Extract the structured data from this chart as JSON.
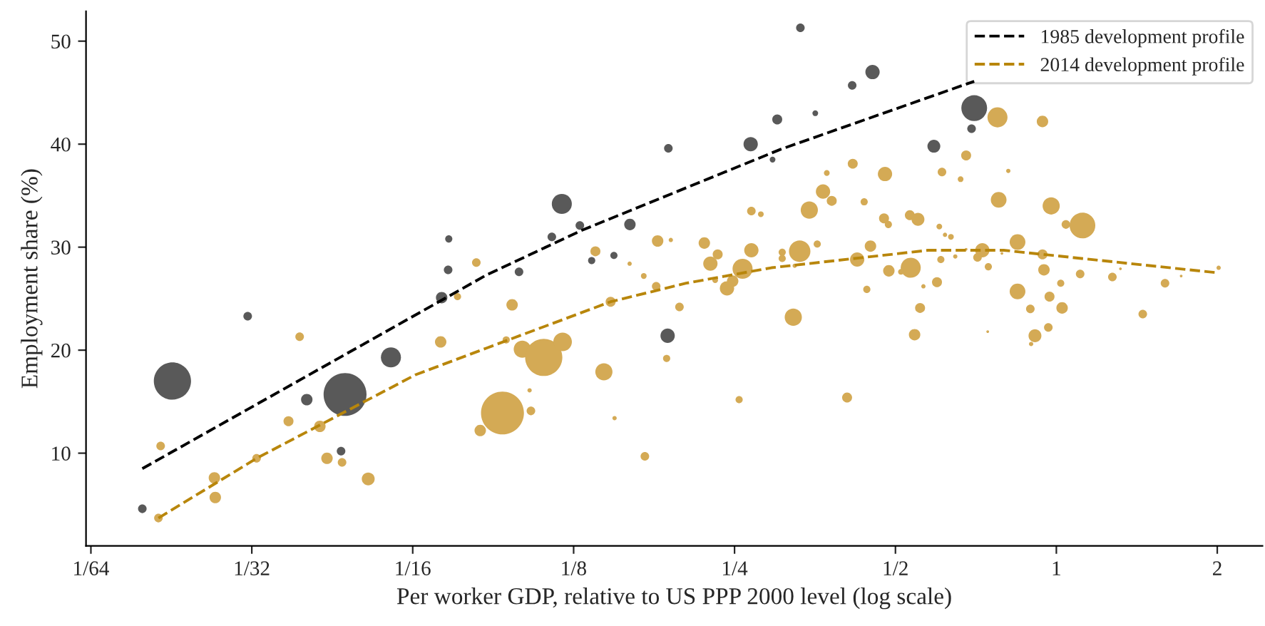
{
  "chart_data": {
    "type": "bubble",
    "xlabel": "Per worker GDP, relative to US PPP 2000 level (log scale)",
    "ylabel": "Employment share (%)",
    "log": "x",
    "grid": false,
    "legend": "top right",
    "marker": "circle",
    "xlim": [
      0.0153,
      2.43
    ],
    "ylim": [
      1.0,
      52.9
    ],
    "xticks": [
      {
        "value": 0.015625,
        "label": "1/64"
      },
      {
        "value": 0.03125,
        "label": "1/32"
      },
      {
        "value": 0.0625,
        "label": "1/16"
      },
      {
        "value": 0.125,
        "label": "1/8"
      },
      {
        "value": 0.25,
        "label": "1/4"
      },
      {
        "value": 0.5,
        "label": "1/2"
      },
      1,
      2
    ],
    "yticks": [
      10,
      20,
      30,
      40,
      50
    ],
    "series": [
      {
        "color": "#595959",
        "x": [
          0.0195,
          0.0222,
          0.0307,
          0.0396,
          0.0459,
          0.0467,
          0.0569,
          0.0708,
          0.0728,
          0.073,
          0.0988,
          0.1138,
          0.1188,
          0.1284,
          0.1351,
          0.1487,
          0.1593,
          0.1874,
          0.188,
          0.268,
          0.2945,
          0.3005,
          0.332,
          0.354,
          0.415,
          0.453,
          0.59,
          0.694,
          0.702
        ],
        "values": [
          4.6,
          17.0,
          23.3,
          15.2,
          10.2,
          15.7,
          19.3,
          25.1,
          27.8,
          30.8,
          27.6,
          31.0,
          34.2,
          32.1,
          28.7,
          29.2,
          32.2,
          21.4,
          39.6,
          40.0,
          38.5,
          42.4,
          51.3,
          43.0,
          45.7,
          47.0,
          39.8,
          41.5,
          43.5
        ],
        "sizes": [
          0.04,
          0.751,
          0.04,
          0.071,
          0.04,
          1.0,
          0.218,
          0.071,
          0.04,
          0.028,
          0.04,
          0.04,
          0.218,
          0.04,
          0.028,
          0.028,
          0.071,
          0.111,
          0.04,
          0.111,
          0.018,
          0.054,
          0.04,
          0.018,
          0.04,
          0.111,
          0.09,
          0.04,
          0.36
        ]
      },
      {
        "color": "#d4aa55",
        "x": [
          0.0822,
          0.0384,
          0.0758,
          0.0705,
          0.0211,
          0.0366,
          0.0419,
          0.0319,
          0.0266,
          0.0267,
          0.0432,
          0.0461,
          0.0516,
          0.0209,
          0.0836,
          0.0959,
          0.0935,
          0.1002,
          0.1099,
          0.1192,
          0.1034,
          0.104,
          0.092,
          0.1373,
          0.1466,
          0.1424,
          0.1491,
          0.1699,
          0.1795,
          0.19,
          0.1591,
          0.1691,
          0.1784,
          0.1972,
          0.1866,
          0.2195,
          0.2325,
          0.2253,
          0.2688,
          0.2588,
          0.248,
          0.242,
          0.23,
          0.255,
          0.2688,
          0.28,
          0.345,
          0.366,
          0.38,
          0.416,
          0.372,
          0.478,
          0.437,
          0.476,
          0.485,
          0.532,
          0.551,
          0.611,
          0.678,
          0.662,
          0.78,
          0.604,
          0.619,
          0.635,
          0.727,
          0.712,
          0.746,
          0.647,
          0.608,
          0.534,
          0.486,
          0.512,
          0.598,
          0.564,
          0.449,
          0.424,
          0.442,
          0.357,
          0.331,
          0.307,
          0.307,
          0.324,
          0.322,
          0.556,
          0.543,
          0.744,
          0.406,
          0.776,
          0.942,
          0.813,
          0.978,
          1.119,
          1.042,
          0.846,
          0.678,
          0.791,
          0.942,
          0.948,
          1.019,
          1.108,
          1.273,
          1.318,
          1.597,
          1.712,
          2.012,
          0.846,
          0.971,
          0.894,
          1.025,
          1.451,
          0.966,
          0.912,
          0.897
        ],
        "values": [
          28.5,
          21.3,
          25.2,
          20.8,
          10.7,
          13.1,
          12.6,
          9.5,
          7.6,
          5.7,
          9.5,
          9.1,
          7.5,
          3.7,
          12.2,
          24.4,
          21.0,
          20.1,
          19.3,
          20.8,
          16.1,
          14.1,
          13.9,
          29.6,
          24.7,
          17.9,
          13.4,
          9.7,
          30.6,
          30.7,
          28.4,
          27.2,
          26.2,
          24.2,
          19.2,
          30.4,
          29.3,
          28.4,
          29.7,
          27.9,
          26.7,
          26.0,
          26.8,
          15.2,
          33.5,
          33.2,
          33.6,
          35.4,
          34.5,
          38.1,
          37.2,
          37.1,
          34.4,
          32.8,
          32.2,
          33.1,
          32.7,
          37.3,
          38.9,
          36.6,
          34.6,
          32.0,
          31.2,
          31.0,
          29.7,
          29.0,
          28.1,
          29.1,
          28.8,
          28.0,
          27.7,
          27.6,
          26.6,
          26.2,
          30.1,
          28.8,
          25.9,
          30.3,
          29.6,
          29.5,
          28.9,
          28.2,
          23.2,
          24.1,
          21.5,
          21.8,
          15.4,
          42.6,
          42.2,
          37.4,
          34.0,
          32.1,
          32.2,
          30.5,
          29.8,
          29.4,
          29.3,
          27.8,
          26.5,
          27.4,
          27.1,
          27.9,
          26.5,
          27.2,
          28.0,
          25.7,
          25.2,
          24.0,
          24.1,
          23.5,
          22.2,
          21.4,
          20.6
        ],
        "sizes": [
          0.04,
          0.04,
          0.028,
          0.071,
          0.04,
          0.054,
          0.071,
          0.04,
          0.071,
          0.071,
          0.071,
          0.04,
          0.09,
          0.04,
          0.071,
          0.071,
          0.028,
          0.16,
          0.751,
          0.188,
          0.01,
          0.04,
          1.0,
          0.054,
          0.054,
          0.16,
          0.01,
          0.04,
          0.071,
          0.01,
          0.01,
          0.018,
          0.04,
          0.04,
          0.028,
          0.071,
          0.054,
          0.111,
          0.111,
          0.218,
          0.071,
          0.111,
          0.018,
          0.028,
          0.04,
          0.018,
          0.16,
          0.111,
          0.054,
          0.054,
          0.018,
          0.111,
          0.028,
          0.054,
          0.028,
          0.054,
          0.09,
          0.04,
          0.054,
          0.018,
          0.134,
          0.018,
          0.01,
          0.018,
          0.111,
          0.04,
          0.028,
          0.01,
          0.028,
          0.218,
          0.071,
          0.018,
          0.054,
          0.01,
          0.071,
          0.111,
          0.028,
          0.028,
          0.25,
          0.028,
          0.028,
          0.01,
          0.16,
          0.054,
          0.071,
          0.004,
          0.054,
          0.218,
          0.071,
          0.01,
          0.16,
          0.36,
          0.04,
          0.134,
          0.004,
          0.004,
          0.054,
          0.071,
          0.028,
          0.04,
          0.04,
          0.004,
          0.04,
          0.004,
          0.01,
          0.134,
          0.054,
          0.04,
          0.071,
          0.04,
          0.04,
          0.09,
          0.01
        ]
      },
      {
        "type": "line",
        "name": "1985 development profile",
        "color": "#000000",
        "line_style": "dashed",
        "marker": "none",
        "x": [
          0.0195,
          0.0859,
          0.129,
          0.305,
          0.702
        ],
        "values": [
          8.5,
          27.3,
          31.6,
          39.5,
          46.1
        ]
      },
      {
        "type": "line",
        "name": "2014 development profile",
        "color": "#b8860b",
        "line_style": "dashed",
        "marker": "none",
        "x": [
          0.0209,
          0.0319,
          0.0632,
          0.0859,
          0.1466,
          0.203,
          0.293,
          0.576,
          0.797,
          2.012
        ],
        "values": [
          3.7,
          9.5,
          17.6,
          20.2,
          24.7,
          26.5,
          28.0,
          29.7,
          29.7,
          27.5
        ]
      }
    ]
  }
}
